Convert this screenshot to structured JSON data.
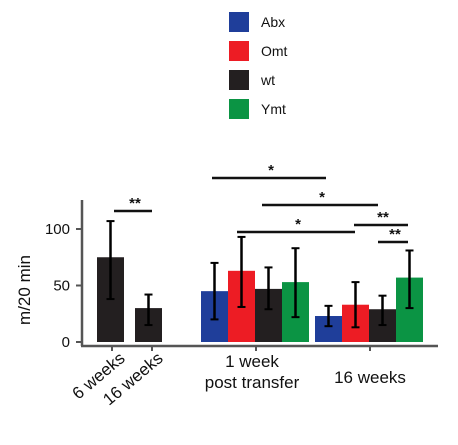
{
  "chart_data": {
    "type": "bar",
    "ylabel": "m/20 min",
    "ylim": [
      0,
      120
    ],
    "yticks": [
      0,
      50,
      100
    ],
    "legend": {
      "position": "top-center",
      "entries": [
        {
          "name": "Abx",
          "color": "#1f3e9a"
        },
        {
          "name": "Omt",
          "color": "#ed1c24"
        },
        {
          "name": "wt",
          "color": "#231f20"
        },
        {
          "name": "Ymt",
          "color": "#0b9444"
        }
      ]
    },
    "groups": [
      {
        "labels": [
          "6 weeks",
          "16 weeks"
        ],
        "label_style": "rotated",
        "bars": [
          {
            "series": "wt",
            "value": 75,
            "err_low": 38,
            "err_high": 107
          },
          {
            "series": "wt",
            "value": 30,
            "err_low": 15,
            "err_high": 42
          }
        ]
      },
      {
        "labels": [
          "1 week",
          "post transfer"
        ],
        "label_style": "center",
        "bars": [
          {
            "series": "Abx",
            "value": 45,
            "err_low": 20,
            "err_high": 70
          },
          {
            "series": "Omt",
            "value": 63,
            "err_low": 31,
            "err_high": 93
          },
          {
            "series": "wt",
            "value": 47,
            "err_low": 29,
            "err_high": 66
          },
          {
            "series": "Ymt",
            "value": 53,
            "err_low": 22,
            "err_high": 83
          }
        ]
      },
      {
        "labels": [
          "16 weeks"
        ],
        "label_style": "center",
        "bars": [
          {
            "series": "Abx",
            "value": 23,
            "err_low": 14,
            "err_high": 32
          },
          {
            "series": "Omt",
            "value": 33,
            "err_low": 13,
            "err_high": 53
          },
          {
            "series": "wt",
            "value": 29,
            "err_low": 15,
            "err_high": 41
          },
          {
            "series": "Ymt",
            "value": 57,
            "err_low": 30,
            "err_high": 81
          }
        ]
      }
    ],
    "significance": [
      {
        "label": "**",
        "from": [
          0,
          0
        ],
        "to": [
          0,
          1
        ]
      },
      {
        "label": "*",
        "from": [
          1,
          0
        ],
        "to": [
          2,
          0
        ]
      },
      {
        "label": "*",
        "from": [
          1,
          2
        ],
        "to": [
          2,
          2
        ]
      },
      {
        "label": "*",
        "from": [
          1,
          1
        ],
        "to": [
          2,
          1
        ]
      },
      {
        "label": "**",
        "from": [
          2,
          1
        ],
        "to": [
          2,
          3
        ]
      },
      {
        "label": "**",
        "from": [
          2,
          2
        ],
        "to": [
          2,
          3
        ]
      }
    ]
  }
}
